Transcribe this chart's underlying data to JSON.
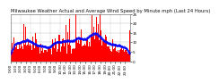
{
  "title": "Milwaukee Weather Actual and Average Wind Speed by Minute mph (Last 24 Hours)",
  "background_color": "#ffffff",
  "bar_color": "#ff0000",
  "avg_color": "#0000ff",
  "grid_color": "#bbbbbb",
  "ylim": [
    0,
    25
  ],
  "num_points": 1440,
  "yticks": [
    0,
    5,
    10,
    15,
    20,
    25
  ],
  "title_fontsize": 3.8,
  "tick_fontsize": 3.0,
  "xtick_interval": 60
}
